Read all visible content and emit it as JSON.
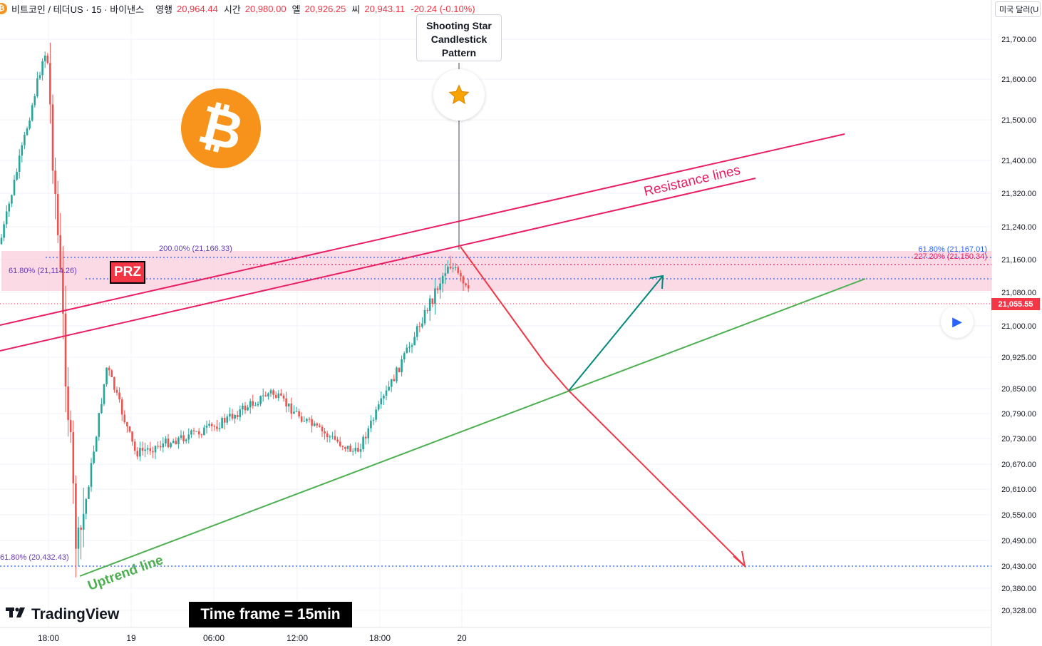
{
  "header": {
    "coin_icon": "bitcoin-small-icon",
    "symbol_title": "비트코인 / 테더US · 15 · 바이낸스",
    "ohlc": [
      {
        "label": "영행",
        "value": "20,964.44"
      },
      {
        "label": "시간",
        "value": "20,980.00"
      },
      {
        "label": "엘",
        "value": "20,926.25"
      },
      {
        "label": "씨",
        "value": "20,943.11"
      }
    ],
    "change": "-20.24 (-0.10%)",
    "currency_button": "미국 달러(U"
  },
  "annotations": {
    "callout_text": "Shooting Star\nCandlestick\nPattern",
    "star_icon": "star-icon",
    "btc_logo_icon": "bitcoin-logo-icon",
    "btc_logo_glyph": "₿",
    "prz_label": "PRZ",
    "resistance_label": "Resistance lines",
    "uptrend_label": "Uptrend line",
    "timeframe_label": "Time frame = 15min",
    "brand_name": "TradingView",
    "fib_labels": {
      "f200": "200.00% (21,166.33)",
      "f618_left": "61.80% (21,114.26)",
      "f618_right": "61.80% (21,167.01)",
      "f272_right": "227.20% (21,150.34)",
      "f618_bottom": "61.80% (20,432.43)"
    }
  },
  "colors": {
    "up": "#26a69a",
    "down": "#ef5350",
    "resistance": "#e91e63",
    "uptrend": "#4caf50",
    "fib_blue": "#2962ff",
    "fib_purple": "#673ab7",
    "prz_zone": "#f8bbd0",
    "current_price": "#f23645",
    "arrow_up": "#00897b",
    "arrow_down": "#f23645"
  },
  "price_axis": {
    "ticks": [
      "21,700.00",
      "21,600.00",
      "21,500.00",
      "21,400.00",
      "21,320.00",
      "21,240.00",
      "21,160.00",
      "21,080.00",
      "21,000.00",
      "20,925.00",
      "20,850.00",
      "20,790.00",
      "20,730.00",
      "20,670.00",
      "20,610.00",
      "20,550.00",
      "20,490.00",
      "20,430.00",
      "20,380.00",
      "20,328.00"
    ],
    "current_price": "21,055.55"
  },
  "time_axis": {
    "ticks": [
      "18:00",
      "19",
      "06:00",
      "12:00",
      "18:00",
      "20"
    ]
  },
  "chart_data": {
    "type": "candlestick",
    "series_close_path": [
      {
        "t": "18-15:00",
        "price": 21180
      },
      {
        "t": "18-17:30",
        "price": 21640
      },
      {
        "t": "18-19:00",
        "price": 20460
      },
      {
        "t": "19-00:00",
        "price": 20900
      },
      {
        "t": "19-02:00",
        "price": 20700
      },
      {
        "t": "19-06:00",
        "price": 20760
      },
      {
        "t": "19-09:00",
        "price": 20840
      },
      {
        "t": "19-12:00",
        "price": 20760
      },
      {
        "t": "19-15:30",
        "price": 20700
      },
      {
        "t": "19-19:00",
        "price": 20930
      },
      {
        "t": "19-22:30",
        "price": 21140
      },
      {
        "t": "20-00:30",
        "price": 21055.55
      }
    ],
    "levels": {
      "fib_200": 21166.33,
      "fib_618_left": 21114.26,
      "fib_618_right": 21167.01,
      "fib_2272_right": 21150.34,
      "fib_618_bottom": 20432.43
    },
    "ylim": [
      20300,
      21740
    ]
  }
}
